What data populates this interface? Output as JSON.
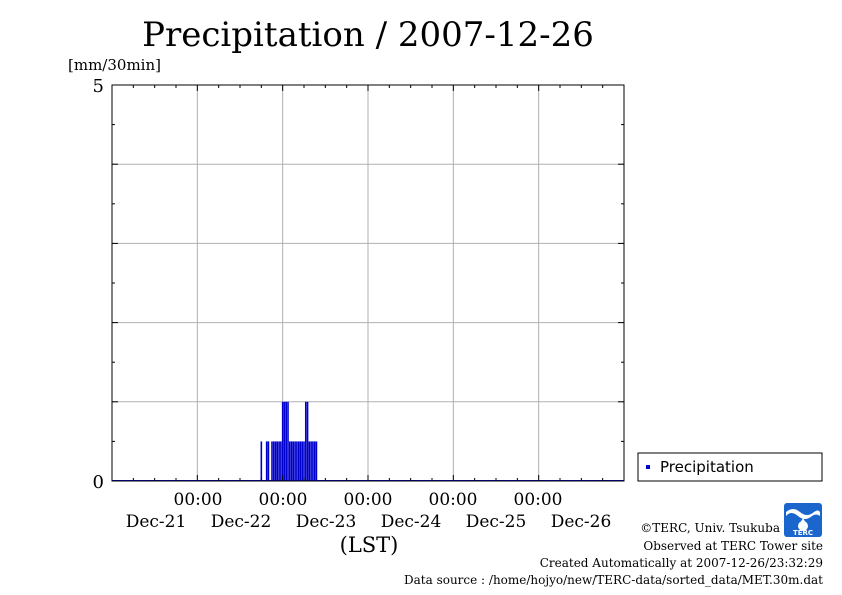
{
  "chart_data": {
    "type": "bar",
    "title": "Precipitation / 2007-12-26",
    "ylabel": "[mm/30min]",
    "xlabel": "(LST)",
    "ylim": [
      0,
      5
    ],
    "y_tick_labels": [
      "5",
      "0"
    ],
    "x_tick_labels": [
      {
        "time": "00:00",
        "date": "Dec-22"
      },
      {
        "time": "00:00",
        "date": "Dec-23"
      },
      {
        "time": "00:00",
        "date": "Dec-24"
      },
      {
        "time": "00:00",
        "date": "Dec-25"
      },
      {
        "time": "00:00",
        "date": "Dec-26"
      }
    ],
    "x_edge_labels": [
      "Dec-21",
      "Dec-26"
    ],
    "grid": true,
    "legend_position": "right-bottom",
    "series": [
      {
        "name": "Precipitation",
        "color": "#0000cc",
        "values": [
          {
            "t": "2007-12-22T18:00",
            "v": 0.5
          },
          {
            "t": "2007-12-22T19:30",
            "v": 0.5
          },
          {
            "t": "2007-12-22T20:00",
            "v": 0.5
          },
          {
            "t": "2007-12-22T21:00",
            "v": 0.5
          },
          {
            "t": "2007-12-22T21:30",
            "v": 0.5
          },
          {
            "t": "2007-12-22T22:00",
            "v": 0.5
          },
          {
            "t": "2007-12-22T22:30",
            "v": 0.5
          },
          {
            "t": "2007-12-22T23:00",
            "v": 0.5
          },
          {
            "t": "2007-12-22T23:30",
            "v": 0.5
          },
          {
            "t": "2007-12-23T00:00",
            "v": 1.0
          },
          {
            "t": "2007-12-23T00:30",
            "v": 1.0
          },
          {
            "t": "2007-12-23T01:00",
            "v": 1.0
          },
          {
            "t": "2007-12-23T01:30",
            "v": 1.0
          },
          {
            "t": "2007-12-23T02:00",
            "v": 0.5
          },
          {
            "t": "2007-12-23T02:30",
            "v": 0.5
          },
          {
            "t": "2007-12-23T03:00",
            "v": 0.5
          },
          {
            "t": "2007-12-23T03:30",
            "v": 0.5
          },
          {
            "t": "2007-12-23T04:00",
            "v": 0.5
          },
          {
            "t": "2007-12-23T04:30",
            "v": 0.5
          },
          {
            "t": "2007-12-23T05:00",
            "v": 0.5
          },
          {
            "t": "2007-12-23T05:30",
            "v": 0.5
          },
          {
            "t": "2007-12-23T06:00",
            "v": 0.5
          },
          {
            "t": "2007-12-23T06:30",
            "v": 1.0
          },
          {
            "t": "2007-12-23T07:00",
            "v": 1.0
          },
          {
            "t": "2007-12-23T07:30",
            "v": 0.5
          },
          {
            "t": "2007-12-23T08:00",
            "v": 0.5
          },
          {
            "t": "2007-12-23T08:30",
            "v": 0.5
          },
          {
            "t": "2007-12-23T09:00",
            "v": 0.5
          },
          {
            "t": "2007-12-23T09:30",
            "v": 0.5
          }
        ]
      }
    ],
    "x_range": [
      "2007-12-21T00:00",
      "2007-12-27T00:00"
    ]
  },
  "legend": {
    "label": "Precipitation"
  },
  "credits": {
    "copyright": "©TERC, Univ. Tsukuba",
    "observed": "Observed at TERC Tower site",
    "created": "Created Automatically at 2007-12-26/23:32:29",
    "source": "Data source : /home/hojyo/new/TERC-data/sorted_data/MET.30m.dat"
  },
  "logo": {
    "text": "TERC",
    "color": "#1a66cc"
  }
}
